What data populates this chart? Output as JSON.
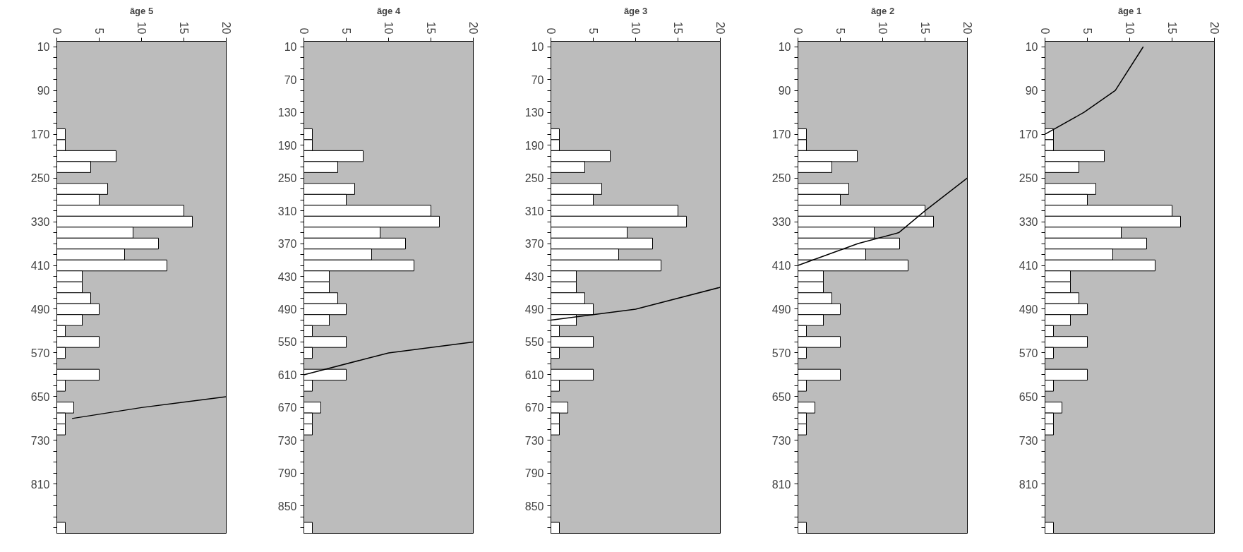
{
  "chart_data": [
    {
      "type": "bar",
      "orientation": "horizontal",
      "title": "âge 5",
      "xlim": [
        0,
        20
      ],
      "xticks": [
        0,
        5,
        10,
        15,
        20
      ],
      "grid": false,
      "categories": [
        "10",
        null,
        null,
        null,
        "90",
        null,
        null,
        null,
        "170",
        null,
        null,
        null,
        "250",
        null,
        null,
        null,
        "330",
        null,
        null,
        null,
        "410",
        null,
        null,
        null,
        "490",
        null,
        null,
        null,
        "570",
        null,
        null,
        null,
        "650",
        null,
        null,
        null,
        "730",
        null,
        null,
        null,
        "810",
        null,
        null,
        null,
        null
      ],
      "series": [
        {
          "color": "#ffffff",
          "values": [
            0,
            0,
            0,
            0,
            0,
            0,
            0,
            0,
            1,
            1,
            7,
            4,
            0,
            6,
            5,
            15,
            16,
            9,
            12,
            8,
            13,
            3,
            3,
            4,
            5,
            3,
            1,
            5,
            1,
            0,
            5,
            1,
            0,
            2,
            1,
            1,
            0,
            0,
            0,
            0,
            0,
            0,
            0,
            0,
            1
          ]
        },
        {
          "type": "line",
          "color": "#000000",
          "values": [
            null,
            null,
            null,
            null,
            null,
            null,
            null,
            null,
            null,
            null,
            null,
            null,
            null,
            null,
            null,
            null,
            null,
            null,
            null,
            null,
            null,
            null,
            null,
            null,
            null,
            null,
            null,
            null,
            null,
            null,
            null,
            null,
            20,
            10,
            1.8,
            null,
            null,
            null,
            null,
            null,
            null,
            null,
            null,
            null,
            null
          ]
        }
      ]
    },
    {
      "type": "bar",
      "orientation": "horizontal",
      "title": "âge 4",
      "xlim": [
        0,
        20
      ],
      "xticks": [
        0,
        5,
        10,
        15,
        20
      ],
      "grid": false,
      "categories": [
        "10",
        null,
        null,
        "70",
        null,
        null,
        "130",
        null,
        null,
        "190",
        null,
        null,
        "250",
        null,
        null,
        "310",
        null,
        null,
        "370",
        null,
        null,
        "430",
        null,
        null,
        "490",
        null,
        null,
        "550",
        null,
        null,
        "610",
        null,
        null,
        "670",
        null,
        null,
        "730",
        null,
        null,
        "790",
        null,
        null,
        "850",
        null,
        null
      ],
      "series": [
        {
          "color": "#ffffff",
          "values": [
            0,
            0,
            0,
            0,
            0,
            0,
            0,
            0,
            1,
            1,
            7,
            4,
            0,
            6,
            5,
            15,
            16,
            9,
            12,
            8,
            13,
            3,
            3,
            4,
            5,
            3,
            1,
            5,
            1,
            0,
            5,
            1,
            0,
            2,
            1,
            1,
            0,
            0,
            0,
            0,
            0,
            0,
            0,
            0,
            1
          ]
        },
        {
          "type": "line",
          "color": "#000000",
          "values": [
            null,
            null,
            null,
            null,
            null,
            null,
            null,
            null,
            null,
            null,
            null,
            null,
            null,
            null,
            null,
            null,
            null,
            null,
            null,
            null,
            null,
            null,
            null,
            null,
            null,
            null,
            null,
            20,
            10,
            null,
            0,
            null,
            null,
            null,
            null,
            null,
            null,
            null,
            null,
            null,
            null,
            null,
            null,
            null,
            null
          ]
        }
      ]
    },
    {
      "type": "bar",
      "orientation": "horizontal",
      "title": "âge 3",
      "xlim": [
        0,
        20
      ],
      "xticks": [
        0,
        5,
        10,
        15,
        20
      ],
      "grid": false,
      "categories": [
        "10",
        null,
        null,
        "70",
        null,
        null,
        "130",
        null,
        null,
        "190",
        null,
        null,
        "250",
        null,
        null,
        "310",
        null,
        null,
        "370",
        null,
        null,
        "430",
        null,
        null,
        "490",
        null,
        null,
        "550",
        null,
        null,
        "610",
        null,
        null,
        "670",
        null,
        null,
        "730",
        null,
        null,
        "790",
        null,
        null,
        "850",
        null,
        null
      ],
      "series": [
        {
          "color": "#ffffff",
          "values": [
            0,
            0,
            0,
            0,
            0,
            0,
            0,
            0,
            1,
            1,
            7,
            4,
            0,
            6,
            5,
            15,
            16,
            9,
            12,
            8,
            13,
            3,
            3,
            4,
            5,
            3,
            1,
            5,
            1,
            0,
            5,
            1,
            0,
            2,
            1,
            1,
            0,
            0,
            0,
            0,
            0,
            0,
            0,
            0,
            1
          ]
        },
        {
          "type": "line",
          "color": "#000000",
          "values": [
            null,
            null,
            null,
            null,
            null,
            null,
            null,
            null,
            null,
            null,
            null,
            null,
            null,
            null,
            null,
            null,
            null,
            null,
            null,
            null,
            null,
            null,
            20,
            null,
            10,
            0,
            null,
            null,
            null,
            null,
            null,
            null,
            null,
            null,
            null,
            null,
            null,
            null,
            null,
            null,
            null,
            null,
            null,
            null,
            null
          ]
        }
      ]
    },
    {
      "type": "bar",
      "orientation": "horizontal",
      "title": "âge 2",
      "xlim": [
        0,
        20
      ],
      "xticks": [
        0,
        5,
        10,
        15,
        20
      ],
      "grid": false,
      "categories": [
        "10",
        null,
        null,
        null,
        "90",
        null,
        null,
        null,
        "170",
        null,
        null,
        null,
        "250",
        null,
        null,
        null,
        "330",
        null,
        null,
        null,
        "410",
        null,
        null,
        null,
        "490",
        null,
        null,
        null,
        "570",
        null,
        null,
        null,
        "650",
        null,
        null,
        null,
        "730",
        null,
        null,
        null,
        "810",
        null,
        null,
        null,
        null
      ],
      "series": [
        {
          "color": "#ffffff",
          "values": [
            0,
            0,
            0,
            0,
            0,
            0,
            0,
            0,
            1,
            1,
            7,
            4,
            0,
            6,
            5,
            15,
            16,
            9,
            12,
            8,
            13,
            3,
            3,
            4,
            5,
            3,
            1,
            5,
            1,
            0,
            5,
            1,
            0,
            2,
            1,
            1,
            0,
            0,
            0,
            0,
            0,
            0,
            0,
            0,
            1
          ]
        },
        {
          "type": "line",
          "color": "#000000",
          "values": [
            null,
            null,
            null,
            null,
            null,
            null,
            null,
            null,
            null,
            null,
            null,
            null,
            20,
            null,
            null,
            15,
            null,
            11.9,
            7.1,
            null,
            0,
            null,
            null,
            null,
            null,
            null,
            null,
            null,
            null,
            null,
            null,
            null,
            null,
            null,
            null,
            null,
            null,
            null,
            null,
            null,
            null,
            null,
            null,
            null,
            null
          ]
        }
      ]
    },
    {
      "type": "bar",
      "orientation": "horizontal",
      "title": "âge 1",
      "xlim": [
        0,
        20
      ],
      "xticks": [
        0,
        5,
        10,
        15,
        20
      ],
      "grid": false,
      "categories": [
        "10",
        null,
        null,
        null,
        "90",
        null,
        null,
        null,
        "170",
        null,
        null,
        null,
        "250",
        null,
        null,
        null,
        "330",
        null,
        null,
        null,
        "410",
        null,
        null,
        null,
        "490",
        null,
        null,
        null,
        "570",
        null,
        null,
        null,
        "650",
        null,
        null,
        null,
        "730",
        null,
        null,
        null,
        "810",
        null,
        null,
        null,
        null
      ],
      "series": [
        {
          "color": "#ffffff",
          "values": [
            0,
            0,
            0,
            0,
            0,
            0,
            0,
            0,
            1,
            1,
            7,
            4,
            0,
            6,
            5,
            15,
            16,
            9,
            12,
            8,
            13,
            3,
            3,
            4,
            5,
            3,
            1,
            5,
            1,
            0,
            5,
            1,
            0,
            2,
            1,
            1,
            0,
            0,
            0,
            0,
            0,
            0,
            0,
            0,
            1
          ]
        },
        {
          "type": "line",
          "color": "#000000",
          "values": [
            11.6,
            null,
            null,
            null,
            8.3,
            null,
            4.6,
            null,
            0,
            null,
            null,
            null,
            null,
            null,
            null,
            null,
            null,
            null,
            null,
            null,
            null,
            null,
            null,
            null,
            null,
            null,
            null,
            null,
            null,
            null,
            null,
            null,
            null,
            null,
            null,
            null,
            null,
            null,
            null,
            null,
            null,
            null,
            null,
            null,
            null
          ]
        }
      ]
    }
  ]
}
